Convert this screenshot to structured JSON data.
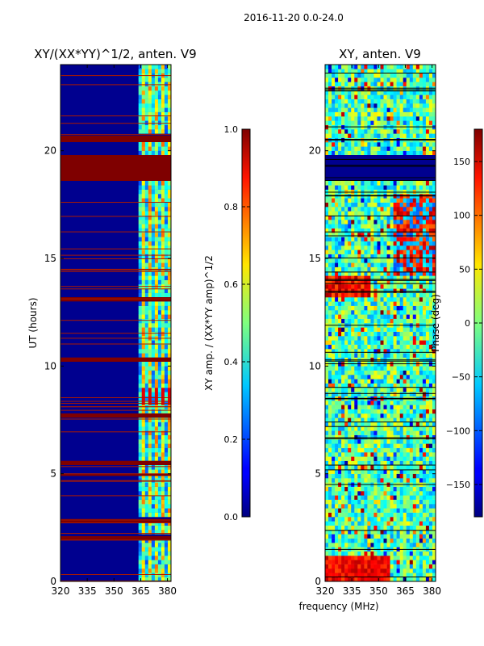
{
  "chart_data": {
    "suptitle": "2016-11-20 0.0-24.0",
    "xlabel": "frequency (MHz)",
    "panels": [
      {
        "type": "heatmap",
        "title": "XY/(XX*YY)^1/2, anten. V9",
        "ylabel": "UT (hours)",
        "xlim": [
          320,
          382
        ],
        "ylim": [
          0,
          24
        ],
        "xticks": [
          "320",
          "335",
          "350",
          "365",
          "380"
        ],
        "yticks": [
          "0",
          "5",
          "10",
          "15",
          "20"
        ],
        "colorbar": {
          "label": "XY amp. / (XX*YY amp)^1/2",
          "range": [
            0.0,
            1.0
          ],
          "ticks": [
            "0.0",
            "0.2",
            "0.4",
            "0.6",
            "0.8",
            "1.0"
          ],
          "colormap": "jet"
        },
        "saturated_bands_hours": [
          [
            18.6,
            19.8
          ],
          [
            20.4,
            20.7
          ],
          [
            13.0,
            13.2
          ],
          [
            10.2,
            10.4
          ],
          [
            7.6,
            7.8
          ],
          [
            5.4,
            5.6
          ],
          [
            4.9,
            5.0
          ],
          [
            2.7,
            2.9
          ],
          [
            1.9,
            2.1
          ]
        ],
        "bright_channels_mhz": [
          365,
          369,
          373,
          377,
          380
        ]
      },
      {
        "type": "heatmap",
        "title": "XY, anten. V9",
        "ylabel": "",
        "xlim": [
          320,
          382
        ],
        "ylim": [
          0,
          24
        ],
        "xticks": [
          "320",
          "335",
          "350",
          "365",
          "380"
        ],
        "yticks": [
          "0",
          "5",
          "10",
          "15",
          "20"
        ],
        "colorbar": {
          "label": "Phase (deg)",
          "range": [
            -180,
            180
          ],
          "ticks": [
            "−150",
            "−100",
            "−50",
            "0",
            "50",
            "100",
            "150"
          ],
          "colormap": "jet"
        },
        "low_phase_band_hours": [
          [
            18.6,
            19.8
          ]
        ]
      }
    ]
  }
}
